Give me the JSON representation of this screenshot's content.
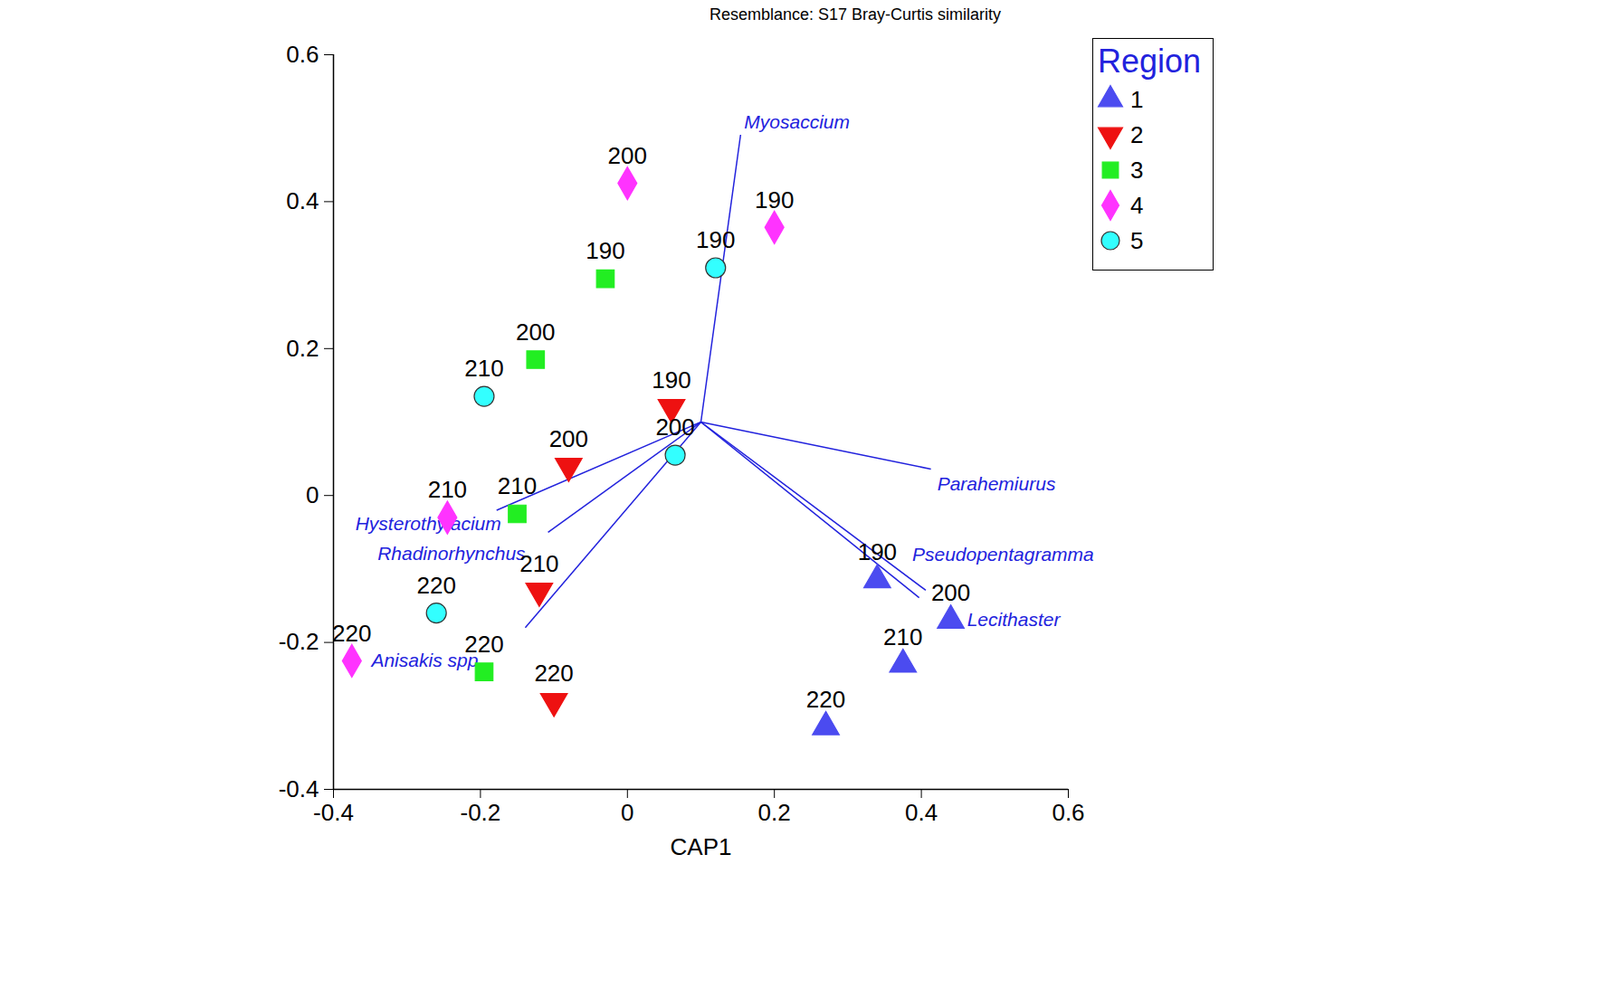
{
  "chart_data": {
    "type": "scatter",
    "title": "Resemblance: S17 Bray-Curtis similarity",
    "x_label": "CAP1",
    "xlim": [
      -0.4,
      0.6
    ],
    "ylim": [
      -0.4,
      0.6
    ],
    "xticks": [
      -0.4,
      -0.2,
      0,
      0.2,
      0.4,
      0.6
    ],
    "yticks": [
      -0.4,
      -0.2,
      0,
      0.2,
      0.4,
      0.6
    ],
    "legend": "top-right",
    "legend_title": "Region",
    "series": [
      {
        "name": "1",
        "color": "#4b4bf0",
        "marker": "triangle",
        "x": [
          0.34,
          0.44,
          0.375,
          0.27
        ],
        "y": [
          -0.115,
          -0.17,
          -0.23,
          -0.315
        ],
        "labels": [
          190,
          200,
          210,
          220
        ]
      },
      {
        "name": "2",
        "color": "#ee1111",
        "marker": "triangle-down",
        "x": [
          0.06,
          -0.08,
          -0.12,
          -0.1
        ],
        "y": [
          0.12,
          0.04,
          -0.13,
          -0.28
        ],
        "labels": [
          190,
          200,
          210,
          220
        ]
      },
      {
        "name": "3",
        "color": "#22ee22",
        "marker": "square",
        "x": [
          -0.03,
          -0.125,
          -0.15,
          -0.195
        ],
        "y": [
          0.295,
          0.185,
          -0.025,
          -0.24
        ],
        "labels": [
          190,
          200,
          210,
          220
        ]
      },
      {
        "name": "4",
        "color": "#ff33ff",
        "marker": "diamond",
        "x": [
          0.2,
          0.0,
          -0.245,
          -0.375
        ],
        "y": [
          0.365,
          0.425,
          -0.03,
          -0.225
        ],
        "labels": [
          190,
          200,
          210,
          220
        ]
      },
      {
        "name": "5",
        "color": "#33ffff",
        "marker": "circle",
        "x": [
          0.12,
          0.065,
          -0.195,
          -0.26
        ],
        "y": [
          0.31,
          0.055,
          0.135,
          -0.16
        ],
        "labels": [
          190,
          200,
          210,
          220
        ]
      }
    ],
    "vectors": {
      "color": "#2222dd",
      "origin": [
        0.1,
        0.1
      ],
      "items": [
        {
          "name": "Myosaccium",
          "x": 0.154,
          "y": 0.491
        },
        {
          "name": "Parahemiurus",
          "x": 0.413,
          "y": 0.036
        },
        {
          "name": "Pseudopentagramma",
          "x": 0.406,
          "y": -0.129
        },
        {
          "name": "Lecithaster",
          "x": 0.397,
          "y": -0.139
        },
        {
          "name": "Hysterothylacium",
          "x": -0.178,
          "y": -0.02
        },
        {
          "name": "Rhadinorhynchus",
          "x": -0.108,
          "y": -0.05
        },
        {
          "name": "Anisakis spp.",
          "x": -0.139,
          "y": -0.18
        }
      ]
    }
  }
}
